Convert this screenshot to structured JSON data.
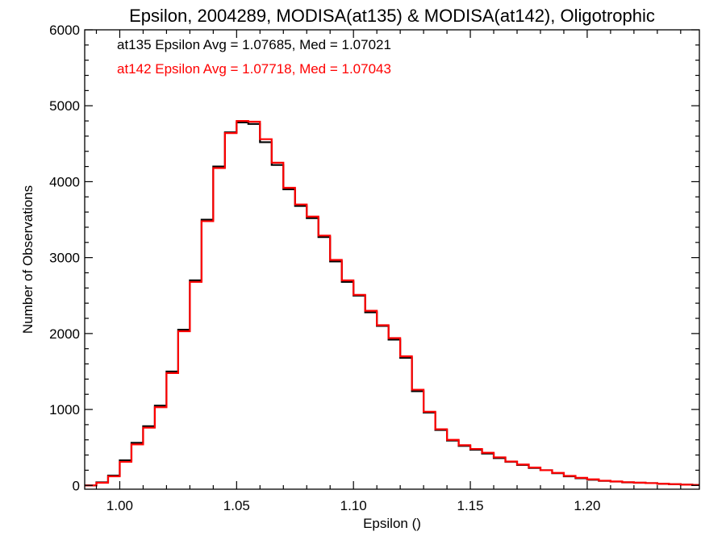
{
  "chart_data": {
    "type": "line",
    "title": "Epsilon, 2004289, MODISA(at135) & MODISA(at142), Oligotrophic",
    "xlabel": "Epsilon ()",
    "ylabel": "Number of Observations",
    "xlim": [
      0.985,
      1.248
    ],
    "ylim": [
      -50,
      6000
    ],
    "x_ticks": [
      1.0,
      1.05,
      1.1,
      1.15,
      1.2
    ],
    "x_tick_labels": [
      "1.00",
      "1.05",
      "1.10",
      "1.15",
      "1.20"
    ],
    "y_ticks": [
      0,
      1000,
      2000,
      3000,
      4000,
      5000,
      6000
    ],
    "y_tick_labels": [
      "0",
      "1000",
      "2000",
      "3000",
      "4000",
      "5000",
      "6000"
    ],
    "grid": false,
    "legend_position": "top-left",
    "annotations": [
      {
        "text": "at135 Epsilon Avg = 1.07685, Med = 1.07021",
        "color": "#000000"
      },
      {
        "text": "at142 Epsilon Avg = 1.07718, Med = 1.07043",
        "color": "#ff0000"
      }
    ],
    "series": [
      {
        "color": "#000000",
        "x": [
          0.985,
          0.99,
          0.995,
          1.0,
          1.005,
          1.01,
          1.015,
          1.02,
          1.025,
          1.03,
          1.035,
          1.04,
          1.045,
          1.05,
          1.055,
          1.06,
          1.065,
          1.07,
          1.075,
          1.08,
          1.085,
          1.09,
          1.095,
          1.1,
          1.105,
          1.11,
          1.115,
          1.12,
          1.125,
          1.13,
          1.135,
          1.14,
          1.145,
          1.15,
          1.155,
          1.16,
          1.165,
          1.17,
          1.175,
          1.18,
          1.185,
          1.19,
          1.195,
          1.2,
          1.205,
          1.21,
          1.215,
          1.22,
          1.225,
          1.23,
          1.235,
          1.24,
          1.245
        ],
        "y": [
          0,
          40,
          130,
          330,
          560,
          780,
          1050,
          1500,
          2050,
          2700,
          3500,
          4200,
          4650,
          4780,
          4760,
          4520,
          4220,
          3900,
          3680,
          3520,
          3270,
          2950,
          2680,
          2500,
          2280,
          2100,
          1920,
          1680,
          1240,
          960,
          730,
          590,
          520,
          470,
          420,
          360,
          310,
          270,
          230,
          200,
          160,
          120,
          95,
          75,
          60,
          50,
          40,
          35,
          30,
          20,
          15,
          10,
          5
        ]
      },
      {
        "color": "#ff0000",
        "x": [
          0.985,
          0.99,
          0.995,
          1.0,
          1.005,
          1.01,
          1.015,
          1.02,
          1.025,
          1.03,
          1.035,
          1.04,
          1.045,
          1.05,
          1.055,
          1.06,
          1.065,
          1.07,
          1.075,
          1.08,
          1.085,
          1.09,
          1.095,
          1.1,
          1.105,
          1.11,
          1.115,
          1.12,
          1.125,
          1.13,
          1.135,
          1.14,
          1.145,
          1.15,
          1.155,
          1.16,
          1.165,
          1.17,
          1.175,
          1.18,
          1.185,
          1.19,
          1.195,
          1.2,
          1.205,
          1.21,
          1.215,
          1.22,
          1.225,
          1.23,
          1.235,
          1.24,
          1.245
        ],
        "y": [
          0,
          35,
          120,
          310,
          540,
          760,
          1030,
          1480,
          2030,
          2680,
          3480,
          4180,
          4640,
          4800,
          4790,
          4560,
          4250,
          3920,
          3700,
          3540,
          3290,
          2970,
          2700,
          2510,
          2300,
          2110,
          1940,
          1700,
          1260,
          970,
          740,
          600,
          530,
          480,
          430,
          370,
          315,
          275,
          235,
          200,
          165,
          125,
          100,
          80,
          62,
          52,
          42,
          36,
          30,
          22,
          16,
          10,
          6
        ]
      }
    ]
  }
}
